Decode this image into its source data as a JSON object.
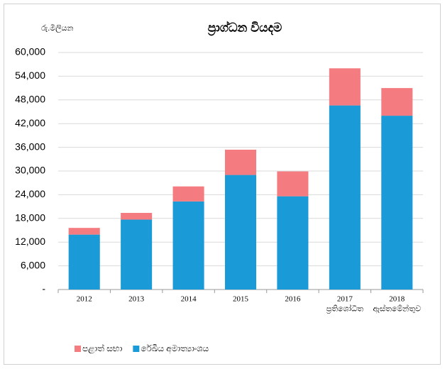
{
  "chart_data": {
    "type": "stacked_bar",
    "title": "ප්‍රාග්ධන වියදම",
    "unit_label": "රු.මිලියන",
    "categories": [
      "2012",
      "2013",
      "2014",
      "2015",
      "2016",
      "2017",
      "2018"
    ],
    "category_sublabels": [
      null,
      null,
      null,
      null,
      null,
      "ප්‍රතිශෝධිත",
      "ඇස්තමේන්තුව"
    ],
    "series": [
      {
        "name": "රේඛීය අමාත්‍යාංශය",
        "color": "#1a9ad6",
        "values": [
          13900,
          17700,
          22300,
          29000,
          23600,
          46600,
          44000
        ]
      },
      {
        "name": "පළාත් සභා",
        "color": "#f47c80",
        "values": [
          1700,
          1700,
          3800,
          6400,
          6300,
          9400,
          7000
        ]
      }
    ],
    "ylim": [
      0,
      60000
    ],
    "yticks": [
      {
        "value": 0,
        "label": "-"
      },
      {
        "value": 6000,
        "label": "6,000"
      },
      {
        "value": 12000,
        "label": "12,000"
      },
      {
        "value": 18000,
        "label": "18,000"
      },
      {
        "value": 24000,
        "label": "24,000"
      },
      {
        "value": 30000,
        "label": "30,000"
      },
      {
        "value": 36000,
        "label": "36,000"
      },
      {
        "value": 42000,
        "label": "42,000"
      },
      {
        "value": 48000,
        "label": "48,000"
      },
      {
        "value": 54000,
        "label": "54,000"
      },
      {
        "value": 60000,
        "label": "60,000"
      }
    ],
    "grid": true
  }
}
